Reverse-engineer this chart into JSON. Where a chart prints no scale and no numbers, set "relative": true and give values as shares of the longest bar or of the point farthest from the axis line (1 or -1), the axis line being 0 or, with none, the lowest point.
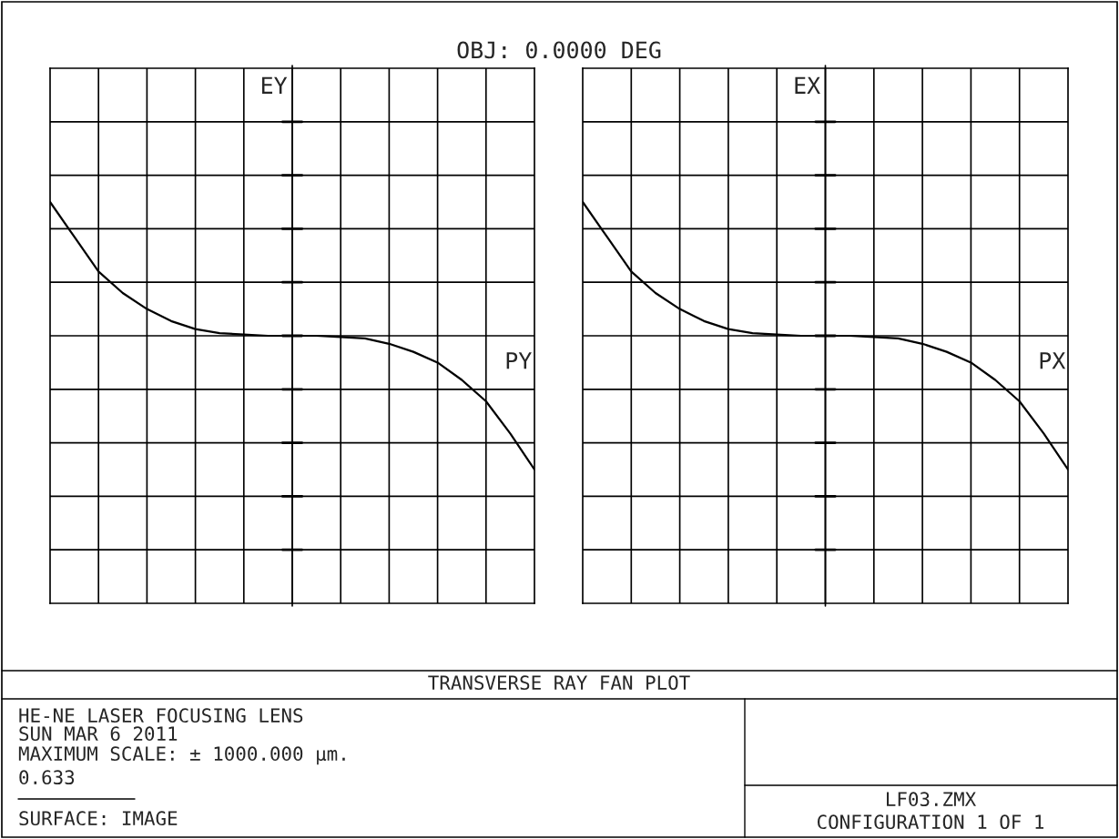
{
  "chart_data": [
    {
      "type": "line",
      "title": "OBJ: 0.0000 DEG",
      "ylabel": "EY",
      "xlabel": "PY",
      "relative": true,
      "grid": true,
      "categories": [
        null,
        null,
        null,
        null,
        null,
        null,
        null,
        null,
        null,
        null,
        null,
        null,
        null,
        null,
        null,
        null,
        null,
        null,
        null,
        null,
        null
      ],
      "series": [
        {
          "color": "#000000",
          "values": [
            1.0,
            0.74,
            0.48,
            0.32,
            0.2,
            0.11,
            0.05,
            0.02,
            0.01,
            0,
            0,
            0,
            -0.01,
            -0.02,
            -0.06,
            -0.12,
            -0.2,
            -0.33,
            -0.49,
            -0.73,
            -1.0
          ]
        }
      ]
    },
    {
      "type": "line",
      "ylabel": "EX",
      "xlabel": "PX",
      "relative": true,
      "grid": true,
      "categories": [
        null,
        null,
        null,
        null,
        null,
        null,
        null,
        null,
        null,
        null,
        null,
        null,
        null,
        null,
        null,
        null,
        null,
        null,
        null,
        null,
        null
      ],
      "series": [
        {
          "color": "#000000",
          "values": [
            1.0,
            0.74,
            0.48,
            0.32,
            0.2,
            0.11,
            0.05,
            0.02,
            0.01,
            0,
            0,
            0,
            -0.01,
            -0.02,
            -0.06,
            -0.12,
            -0.2,
            -0.33,
            -0.49,
            -0.73,
            -1.0
          ]
        }
      ]
    },
    {
      "type": "other",
      "title": "TRANSVERSE RAY FAN PLOT",
      "annotations": [
        "HE-NE LASER FOCUSING LENS",
        "SUN MAR 6 2011",
        "MAXIMUM SCALE: ± 1000.000 µm.",
        "0.633",
        "SURFACE: IMAGE",
        "LF03.ZMX",
        "CONFIGURATION 1 OF 1"
      ]
    }
  ]
}
